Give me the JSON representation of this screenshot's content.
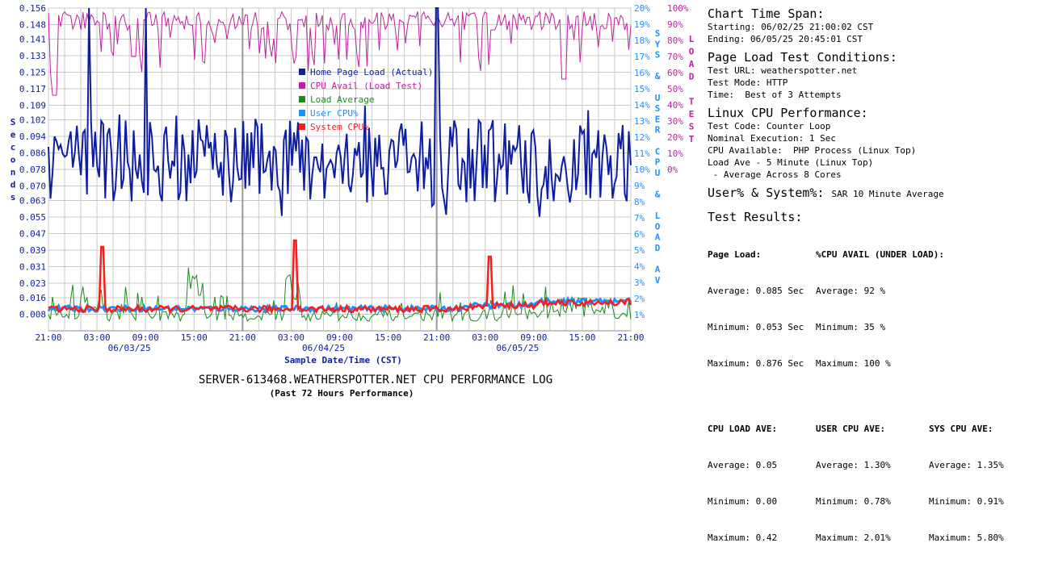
{
  "chart_data": {
    "type": "line",
    "title": "SERVER-613468.WEATHERSPOTTER.NET CPU PERFORMANCE LOG",
    "subtitle": "(Past 72 Hours Performance)",
    "xlabel": "Sample Date/Time (CST)",
    "ylabel_left": "Seconds",
    "ylabel_right_inner": "SYS & USER CPU & LOAD AV",
    "ylabel_right_outer": "LOAD TEST",
    "y_left_ticks": [
      "0.156",
      "0.148",
      "0.141",
      "0.133",
      "0.125",
      "0.117",
      "0.109",
      "0.102",
      "0.094",
      "0.086",
      "0.078",
      "0.070",
      "0.063",
      "0.055",
      "0.047",
      "0.039",
      "0.031",
      "0.023",
      "0.016",
      "0.008"
    ],
    "y_left_range": [
      0,
      0.156
    ],
    "y_right_inner_ticks": [
      "20%",
      "19%",
      "18%",
      "17%",
      "16%",
      "15%",
      "14%",
      "13%",
      "12%",
      "11%",
      "10%",
      "9%",
      "8%",
      "7%",
      "6%",
      "5%",
      "4%",
      "3%",
      "2%",
      "1%"
    ],
    "y_right_inner_range": [
      0,
      20
    ],
    "y_right_outer_ticks": [
      "100%",
      "90%",
      "80%",
      "70%",
      "60%",
      "50%",
      "40%",
      "30%",
      "20%",
      "10%",
      "0%"
    ],
    "y_right_outer_range": [
      0,
      100
    ],
    "x_ticks": [
      "21:00",
      "03:00",
      "09:00",
      "15:00",
      "21:00",
      "03:00",
      "09:00",
      "15:00",
      "21:00",
      "03:00",
      "09:00",
      "15:00",
      "21:00"
    ],
    "x_range_hours": [
      0,
      72
    ],
    "date_labels": [
      "06/03/25",
      "06/04/25",
      "06/05/25"
    ],
    "grid": true,
    "legend_position": "center-left",
    "legend": [
      {
        "label": "Home Page Load (Actual)",
        "color": "#0d1fa0"
      },
      {
        "label": "CPU Avail (Load Test)",
        "color": "#c020a0"
      },
      {
        "label": "Load Average",
        "color": "#1a8a1a"
      },
      {
        "label": "User CPU%",
        "color": "#1e90ff"
      },
      {
        "label": "System CPU%",
        "color": "#ff1a1a"
      }
    ],
    "series_summary": {
      "page_load_sec": {
        "average": 0.085,
        "minimum": 0.053,
        "maximum": 0.876,
        "typical_range": [
          0.06,
          0.1
        ],
        "spikes_hours": [
          5,
          12,
          48
        ]
      },
      "cpu_avail_pct": {
        "average": 92,
        "minimum": 35,
        "maximum": 100
      },
      "load_average": {
        "average": 0.05,
        "minimum": 0.0,
        "maximum": 0.42
      },
      "user_cpu_pct": {
        "average": 1.3,
        "minimum": 0.78,
        "maximum": 2.01
      },
      "sys_cpu_pct": {
        "average": 1.35,
        "minimum": 0.91,
        "maximum": 5.8,
        "spikes_hours": [
          6.7,
          30.5,
          54.5
        ]
      }
    }
  },
  "panel": {
    "span_title": "Chart Time Span:",
    "span_start": "Starting: 06/02/25 21:00:02 CST",
    "span_end": "Ending: 06/05/25 20:45:01 CST",
    "cond_title": "Page Load Test Conditions:",
    "cond_url": "Test URL: weatherspotter.net",
    "cond_mode": "Test Mode: HTTP",
    "cond_time": "Time:  Best of 3 Attempts",
    "cpu_title": "Linux CPU Performance:",
    "cpu_code": "Test Code: Counter Loop",
    "cpu_exec": "Nominal Execution: 1 Sec",
    "cpu_avail": "CPU Available:  PHP Process (Linux Top)",
    "cpu_load": "Load Ave - 5 Minute (Linux Top)",
    "cpu_cores": " - Average Across 8 Cores",
    "us_title": "User% & System%:",
    "us_note": "SAR 10 Minute Average",
    "res_title": "Test Results:",
    "pl_head": "Page Load:",
    "pl_avg": "Average: 0.085 Sec",
    "pl_min": "Minimum: 0.053 Sec",
    "pl_max": "Maximum: 0.876 Sec",
    "ca_head": "%CPU AVAIL (UNDER LOAD):",
    "ca_avg": "Average: 92 %",
    "ca_min": "Minimum: 35 %",
    "ca_max": "Maximum: 100 %",
    "la_head": "CPU LOAD AVE:",
    "la_avg": "Average: 0.05",
    "la_min": "Minimum: 0.00",
    "la_max": "Maximum: 0.42",
    "uc_head": "USER CPU AVE:",
    "uc_avg": "Average: 1.30%",
    "uc_min": "Minimum: 0.78%",
    "uc_max": "Maximum: 2.01%",
    "sc_head": "SYS CPU AVE:",
    "sc_avg": "Average: 1.35%",
    "sc_min": "Minimum: 0.91%",
    "sc_max": "Maximum: 5.80%"
  }
}
